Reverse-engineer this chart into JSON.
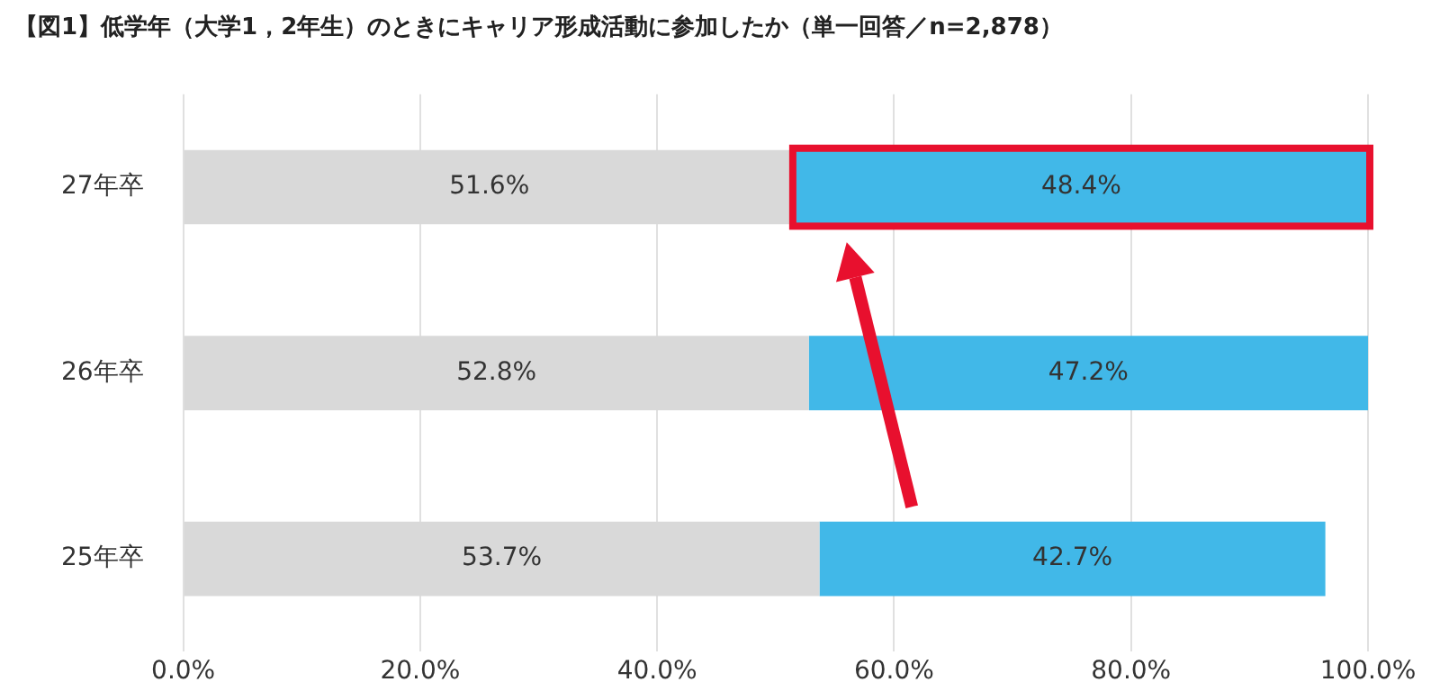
{
  "chart_data": {
    "type": "bar",
    "orientation": "horizontal",
    "stacked": true,
    "title": "【図1】低学年（大学1，2年生）のときにキャリア形成活動に参加したか（単一回答／n=2,878）",
    "categories": [
      "27年卒",
      "26年卒",
      "25年卒"
    ],
    "series": [
      {
        "color": "#d9d9d9",
        "values": [
          51.6,
          52.8,
          53.7
        ],
        "value_labels": [
          "51.6%",
          "52.8%",
          "53.7%"
        ]
      },
      {
        "color": "#41b8e8",
        "values": [
          48.4,
          47.2,
          42.7
        ],
        "value_labels": [
          "48.4%",
          "47.2%",
          "42.7%"
        ]
      }
    ],
    "xlim": [
      0,
      100
    ],
    "xticks": [
      {
        "value": 0,
        "label": "0.0%"
      },
      {
        "value": 20,
        "label": "20.0%"
      },
      {
        "value": 40,
        "label": "40.0%"
      },
      {
        "value": 60,
        "label": "60.0%"
      },
      {
        "value": 80,
        "label": "80.0%"
      },
      {
        "value": 100,
        "label": "100.0%"
      }
    ],
    "grid": "x",
    "legend": false
  }
}
